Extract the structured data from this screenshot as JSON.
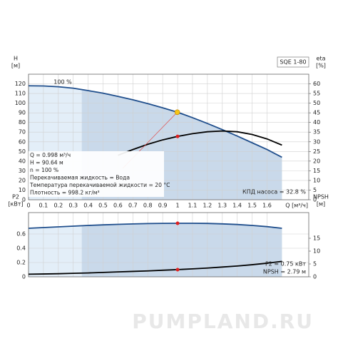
{
  "chart_data": [
    {
      "type": "line",
      "title": "SQE 1-80",
      "ylabel": [
        "H",
        "[м]"
      ],
      "y2label": [
        "eta",
        "[%]"
      ],
      "xlabel": "Q [м³/ч]",
      "x": [
        0,
        0.1,
        0.2,
        0.3,
        0.4,
        0.5,
        0.6,
        0.7,
        0.8,
        0.9,
        1.0,
        1.1,
        1.2,
        1.3,
        1.4,
        1.5,
        1.6,
        1.7
      ],
      "xlim": [
        0,
        1.88
      ],
      "xticks": [
        0,
        0.1,
        0.2,
        0.3,
        0.4,
        0.5,
        0.6,
        0.7,
        0.8,
        0.9,
        1.0,
        1.1,
        1.2,
        1.3,
        1.4,
        1.5,
        1.6
      ],
      "ylim": [
        0,
        130
      ],
      "yticks": [
        0,
        10,
        20,
        30,
        40,
        50,
        60,
        70,
        80,
        90,
        100,
        110,
        120
      ],
      "y2lim": [
        0,
        65
      ],
      "y2ticks": [
        0,
        5,
        10,
        15,
        20,
        25,
        30,
        35,
        40,
        45,
        50,
        55,
        60
      ],
      "grid": true,
      "series": [
        {
          "color": "#1f4e8c",
          "values": [
            118,
            117.8,
            117,
            115.5,
            113,
            110.3,
            107,
            103.5,
            99.5,
            95.2,
            90.6,
            85,
            79,
            72.6,
            66,
            59,
            52,
            44
          ]
        },
        {
          "color": "#000000",
          "axis": "y2",
          "values": [
            null,
            null,
            null,
            null,
            null,
            null,
            23,
            26,
            28.7,
            31,
            32.8,
            34.2,
            35.2,
            35.6,
            35.2,
            33.8,
            31.5,
            28.3
          ]
        }
      ],
      "curve_label": "100 %",
      "duty_point": {
        "x": 0.998,
        "y": 90.64,
        "color": "#f5c518"
      },
      "info": [
        "Q = 0.998 м³/ч",
        "H = 90.64 м",
        "n = 100 %",
        "Перекачиваемая жидкость = Вода",
        "Температура перекачиваемой жидкости = 20 °C",
        "Плотность = 998.2 кг/м³"
      ],
      "annotation": "КПД насоса = 32.8 %"
    },
    {
      "type": "line",
      "ylabel": [
        "P2",
        "[кВт]"
      ],
      "y2label": [
        "NPSH",
        "[м]"
      ],
      "x": [
        0,
        0.1,
        0.2,
        0.3,
        0.4,
        0.5,
        0.6,
        0.7,
        0.8,
        0.9,
        1.0,
        1.1,
        1.2,
        1.3,
        1.4,
        1.5,
        1.6,
        1.7
      ],
      "xlim": [
        0,
        1.88
      ],
      "xticks": [
        0,
        0.1,
        0.2,
        0.3,
        0.4,
        0.5,
        0.6,
        0.7,
        0.8,
        0.9,
        1.0,
        1.1,
        1.2,
        1.3,
        1.4,
        1.5,
        1.6
      ],
      "ylim": [
        0,
        0.9
      ],
      "yticks": [
        0,
        0.2,
        0.4,
        0.6
      ],
      "y2lim": [
        0,
        25
      ],
      "y2ticks": [
        0,
        5,
        10,
        15
      ],
      "grid": true,
      "series": [
        {
          "color": "#1f4e8c",
          "values": [
            0.68,
            0.69,
            0.7,
            0.71,
            0.72,
            0.728,
            0.735,
            0.741,
            0.746,
            0.749,
            0.75,
            0.75,
            0.748,
            0.742,
            0.733,
            0.72,
            0.703,
            0.68
          ]
        },
        {
          "color": "#000000",
          "axis": "y2",
          "values": [
            1.0,
            1.1,
            1.2,
            1.35,
            1.5,
            1.7,
            1.9,
            2.1,
            2.3,
            2.55,
            2.79,
            3.1,
            3.4,
            3.8,
            4.2,
            4.7,
            5.3,
            6.0
          ]
        }
      ],
      "annotations": [
        "P2 = 0.75 кВт",
        "NPSH = 2.79 м"
      ]
    }
  ],
  "watermark": "PUMPLAND.RU"
}
